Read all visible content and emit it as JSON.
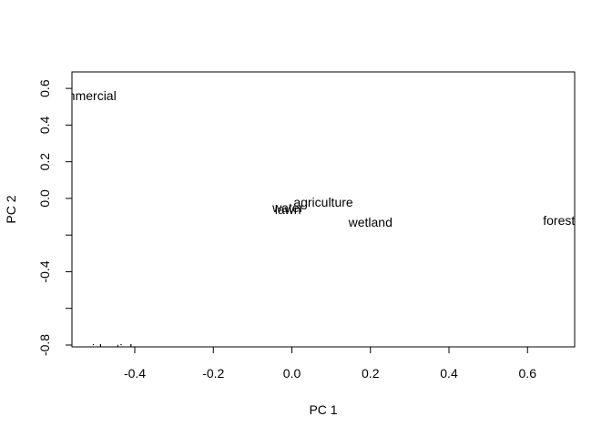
{
  "chart_data": {
    "type": "scatter",
    "title": "",
    "xlabel": "PC 1",
    "ylabel": "PC 2",
    "xlim": [
      -0.56,
      0.72
    ],
    "ylim": [
      -0.81,
      0.69
    ],
    "xticks": [
      -0.4,
      -0.2,
      0.0,
      0.2,
      0.4,
      0.6
    ],
    "xtick_labels": [
      "-0.4",
      "-0.2",
      "0.0",
      "0.2",
      "0.4",
      "0.6"
    ],
    "yticks": [
      -0.8,
      -0.6,
      -0.4,
      -0.2,
      0.0,
      0.2,
      0.4,
      0.6
    ],
    "ytick_labels": [
      "-0.8",
      "",
      "-0.4",
      "",
      "0.0",
      "0.2",
      "0.4",
      "0.6"
    ],
    "grid": false,
    "legend": "none",
    "points": [
      {
        "label": "commercial",
        "x": -0.53,
        "y": 0.56
      },
      {
        "label": "water",
        "x": -0.01,
        "y": -0.05
      },
      {
        "label": "lawn",
        "x": -0.01,
        "y": -0.06
      },
      {
        "label": "agriculture",
        "x": 0.08,
        "y": -0.02
      },
      {
        "label": "wetland",
        "x": 0.2,
        "y": -0.13
      },
      {
        "label": "forest",
        "x": 0.68,
        "y": -0.12
      },
      {
        "label": "residential",
        "x": -0.48,
        "y": -0.82
      }
    ]
  }
}
